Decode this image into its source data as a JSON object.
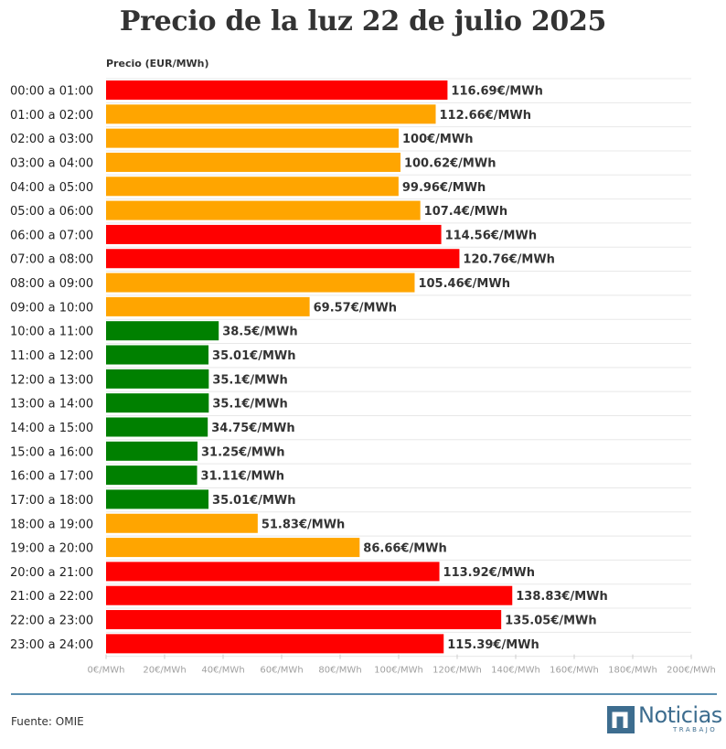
{
  "colors": {
    "high": "#ff0000",
    "medium": "#ffa500",
    "low": "#008000",
    "grid": "#e8e8e8",
    "brand": "#3d6d8f"
  },
  "chart_data": {
    "type": "bar",
    "orientation": "horizontal",
    "title": "Precio de la luz 22 de julio 2025",
    "axis_title": "Precio (EUR/MWh)",
    "xlim": [
      0,
      200
    ],
    "tick_values": [
      0,
      20,
      40,
      60,
      80,
      100,
      120,
      140,
      160,
      180,
      200
    ],
    "tick_labels": [
      "0€/MWh",
      "20€/MWh",
      "40€/MWh",
      "60€/MWh",
      "80€/MWh",
      "100€/MWh",
      "120€/MWh",
      "140€/MWh",
      "160€/MWh",
      "180€/MWh",
      "200€/MWh"
    ],
    "categories": [
      "00:00 a 01:00",
      "01:00 a 02:00",
      "02:00 a 03:00",
      "03:00 a 04:00",
      "04:00 a 05:00",
      "05:00 a 06:00",
      "06:00 a 07:00",
      "07:00 a 08:00",
      "08:00 a 09:00",
      "09:00 a 10:00",
      "10:00 a 11:00",
      "11:00 a 12:00",
      "12:00 a 13:00",
      "13:00 a 14:00",
      "14:00 a 15:00",
      "15:00 a 16:00",
      "16:00 a 17:00",
      "17:00 a 18:00",
      "18:00 a 19:00",
      "19:00 a 20:00",
      "20:00 a 21:00",
      "21:00 a 22:00",
      "22:00 a 23:00",
      "23:00 a 24:00"
    ],
    "values": [
      116.69,
      112.66,
      100,
      100.62,
      99.96,
      107.4,
      114.56,
      120.76,
      105.46,
      69.57,
      38.5,
      35.01,
      35.1,
      35.1,
      34.75,
      31.25,
      31.11,
      35.01,
      51.83,
      86.66,
      113.92,
      138.83,
      135.05,
      115.39
    ],
    "value_labels": [
      "116.69€/MWh",
      "112.66€/MWh",
      "100€/MWh",
      "100.62€/MWh",
      "99.96€/MWh",
      "107.4€/MWh",
      "114.56€/MWh",
      "120.76€/MWh",
      "105.46€/MWh",
      "69.57€/MWh",
      "38.5€/MWh",
      "35.01€/MWh",
      "35.1€/MWh",
      "35.1€/MWh",
      "34.75€/MWh",
      "31.25€/MWh",
      "31.11€/MWh",
      "35.01€/MWh",
      "51.83€/MWh",
      "86.66€/MWh",
      "113.92€/MWh",
      "138.83€/MWh",
      "135.05€/MWh",
      "115.39€/MWh"
    ],
    "levels": [
      "high",
      "medium",
      "medium",
      "medium",
      "medium",
      "medium",
      "high",
      "high",
      "medium",
      "medium",
      "low",
      "low",
      "low",
      "low",
      "low",
      "low",
      "low",
      "low",
      "medium",
      "medium",
      "high",
      "high",
      "high",
      "high"
    ]
  },
  "footer": {
    "source": "Fuente: OMIE"
  },
  "logo": {
    "name": "Noticias",
    "sub": "TRABAJO"
  }
}
